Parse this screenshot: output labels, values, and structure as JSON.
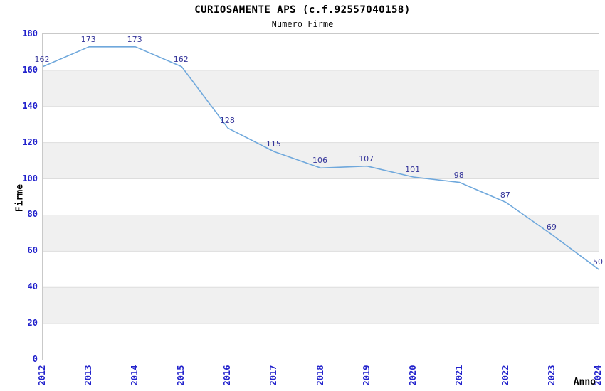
{
  "title": "CURIOSAMENTE APS (c.f.92557040158)",
  "subtitle": "Numero Firme",
  "chart_data": {
    "type": "line",
    "x": [
      "2012",
      "2013",
      "2014",
      "2015",
      "2016",
      "2017",
      "2018",
      "2019",
      "2020",
      "2021",
      "2022",
      "2023",
      "2024"
    ],
    "series": [
      {
        "name": "Numero Firme",
        "values": [
          162,
          173,
          173,
          162,
          128,
          115,
          106,
          107,
          101,
          98,
          87,
          69,
          50
        ]
      }
    ],
    "xlabel": "Anno",
    "ylabel": "Firme",
    "ylim": [
      0,
      180
    ],
    "ytick_step": 20,
    "grid": true,
    "alternating_bands": true,
    "legend_position": "none",
    "data_labels_visible": true,
    "colors": {
      "line": "#6FA8DC",
      "band": "#F0F0F0",
      "grid": "#DDDDDD",
      "plot_border": "#C9C9C9",
      "tick_label": "#2222CC",
      "data_label": "#333399",
      "title": "#000000",
      "axis_title": "#111111"
    }
  }
}
